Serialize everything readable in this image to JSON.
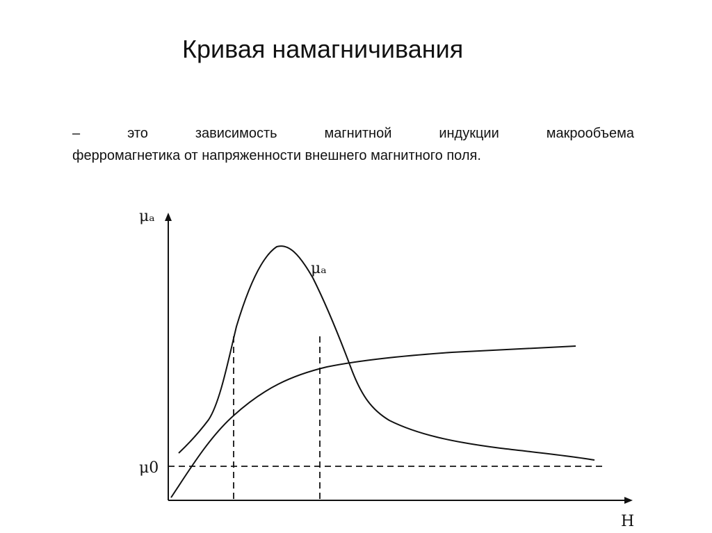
{
  "title": "Кривая намагничивания",
  "definition": {
    "line1": "– это зависимость магнитной индукции макрообъема",
    "line2": "ферромагнетика от напряженности внешнего магнитного поля."
  },
  "figure": {
    "y_axis_label": "μₐ",
    "x_axis_label": "H",
    "mu0_label": "μ0",
    "peak_curve_label": "μₐ",
    "colors": {
      "line": "#111111",
      "background": "#ffffff"
    }
  }
}
